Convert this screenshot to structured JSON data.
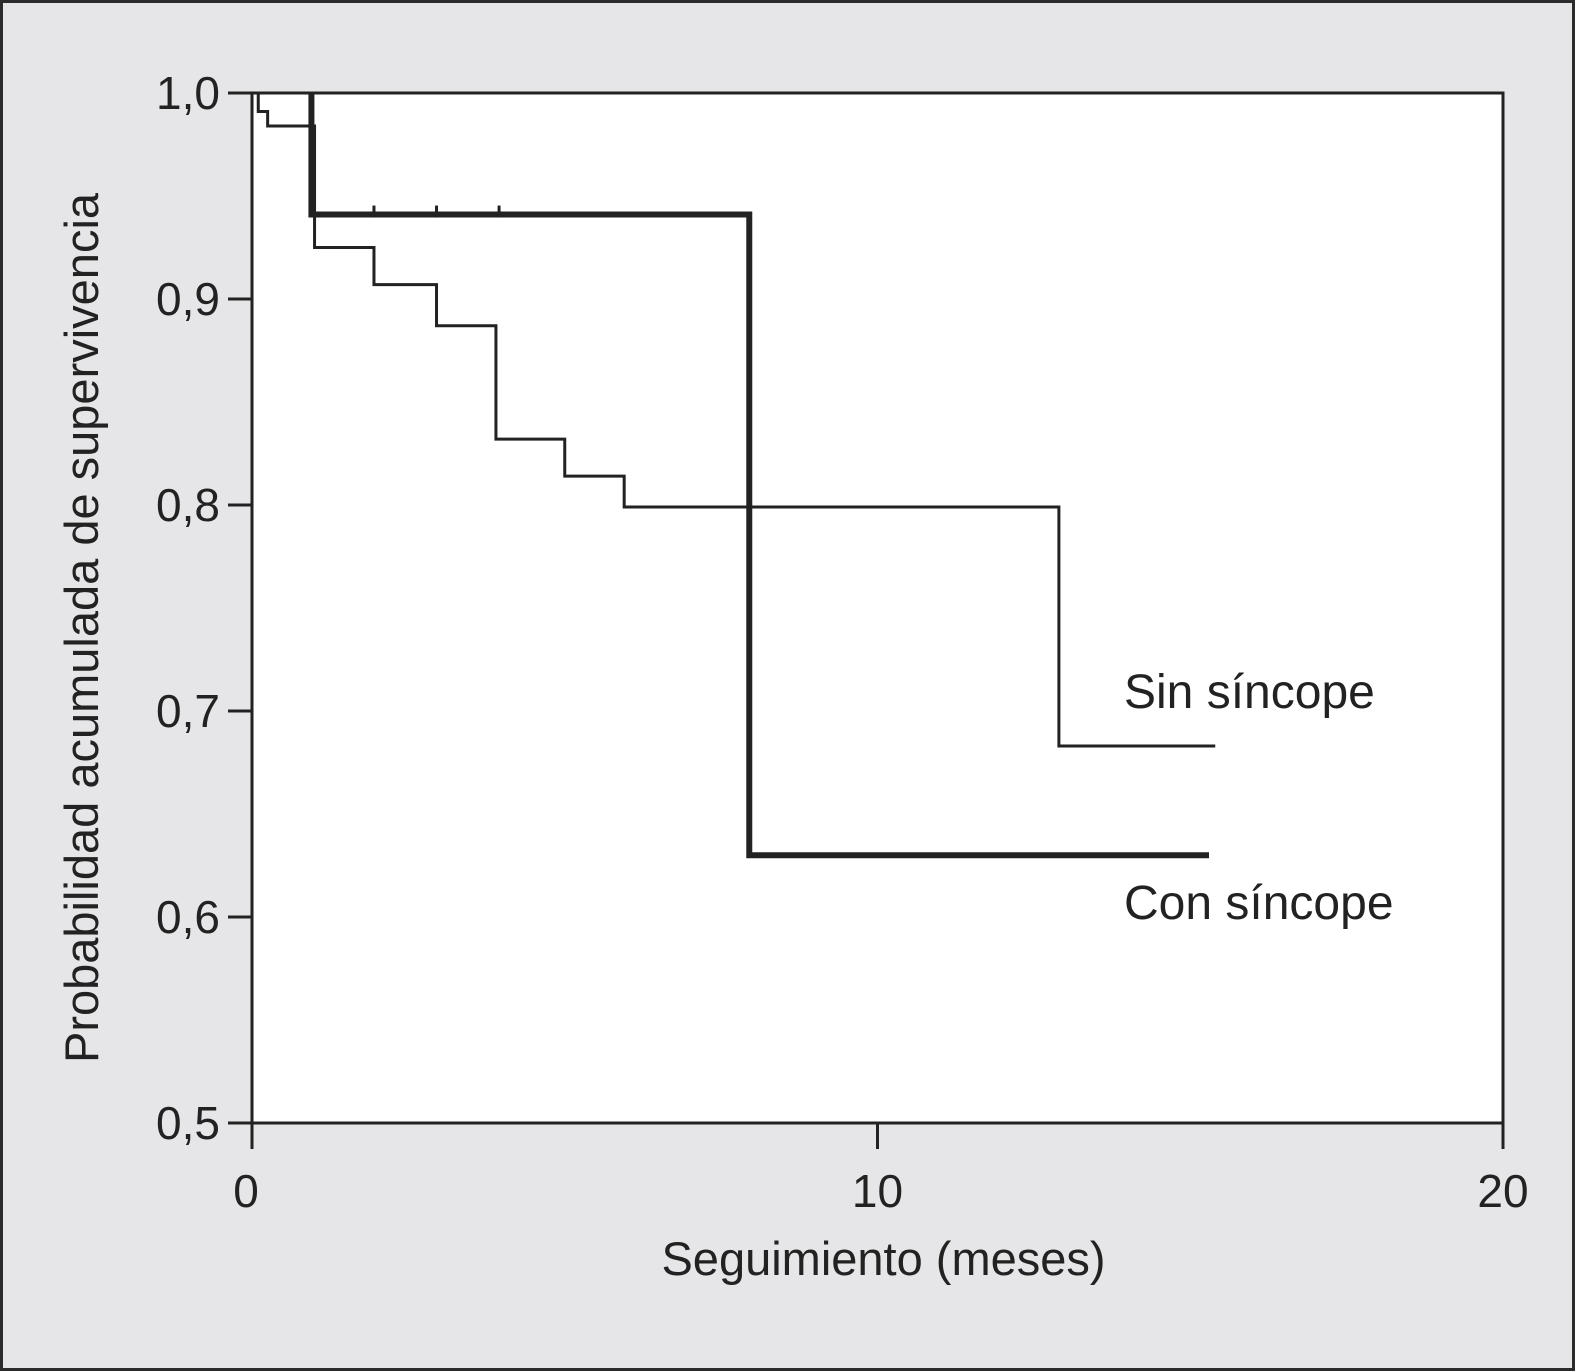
{
  "chart_data": {
    "type": "line",
    "subtype": "step (Kaplan-Meier survival curves)",
    "xlabel": "Seguimiento (meses)",
    "ylabel": "Probabilidad acumulada de supervivencia",
    "xlim": [
      0,
      20
    ],
    "ylim": [
      0.5,
      1.0
    ],
    "x_ticks": [
      0,
      10,
      20
    ],
    "x_tick_labels": [
      "0",
      "10",
      "20"
    ],
    "y_ticks": [
      0.5,
      0.6,
      0.7,
      0.8,
      0.9,
      1.0
    ],
    "y_tick_labels": [
      "0,5",
      "0,6",
      "0,7",
      "0,8",
      "0,9",
      "1,0"
    ],
    "grid": false,
    "legend": "inline labels at right of curves",
    "colors": {
      "plot_background": "#ffffff",
      "figure_background": "#e6e6e8",
      "lines": "#222222"
    },
    "series": [
      {
        "name": "Sin síncope",
        "line_weight": "thin",
        "steps": [
          {
            "x": 0.0,
            "y": 1.0
          },
          {
            "x": 0.1,
            "y": 0.991
          },
          {
            "x": 0.25,
            "y": 0.984
          },
          {
            "x": 1.0,
            "y": 0.925
          },
          {
            "x": 1.95,
            "y": 0.907
          },
          {
            "x": 2.95,
            "y": 0.887
          },
          {
            "x": 3.9,
            "y": 0.832
          },
          {
            "x": 5.0,
            "y": 0.814
          },
          {
            "x": 5.95,
            "y": 0.799
          },
          {
            "x": 12.9,
            "y": 0.683
          }
        ],
        "end_x": 15.4,
        "censor_marks": []
      },
      {
        "name": "Con síncope",
        "line_weight": "thick",
        "steps": [
          {
            "x": 0.95,
            "y": 1.0
          },
          {
            "x": 0.95,
            "y": 0.941
          },
          {
            "x": 7.95,
            "y": 0.63
          }
        ],
        "end_x": 15.3,
        "censor_marks": [
          {
            "x": 1.95,
            "y": 0.941
          },
          {
            "x": 2.95,
            "y": 0.941
          },
          {
            "x": 3.95,
            "y": 0.941
          }
        ]
      }
    ]
  }
}
